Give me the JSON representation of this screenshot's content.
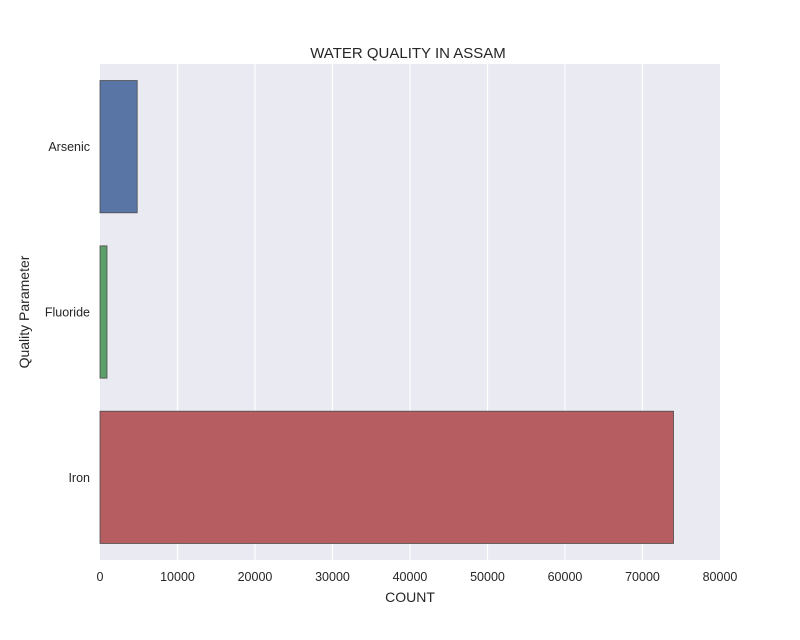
{
  "chart_data": {
    "type": "bar",
    "orientation": "horizontal",
    "title": "WATER QUALITY IN ASSAM",
    "xlabel": "COUNT",
    "ylabel": "Quality Parameter",
    "categories": [
      "Arsenic",
      "Fluoride",
      "Iron"
    ],
    "values": [
      4800,
      900,
      74000
    ],
    "xlim": [
      0,
      80000
    ],
    "xticks": [
      0,
      10000,
      20000,
      30000,
      40000,
      50000,
      60000,
      70000,
      80000
    ],
    "xtick_labels": [
      "0",
      "10000",
      "20000",
      "30000",
      "40000",
      "50000",
      "60000",
      "70000",
      "80000"
    ],
    "grid": true,
    "legend": "none",
    "colors": [
      "#5875a6",
      "#5c9f6a",
      "#b65d62"
    ],
    "plot_background": "#eaeaf2"
  }
}
